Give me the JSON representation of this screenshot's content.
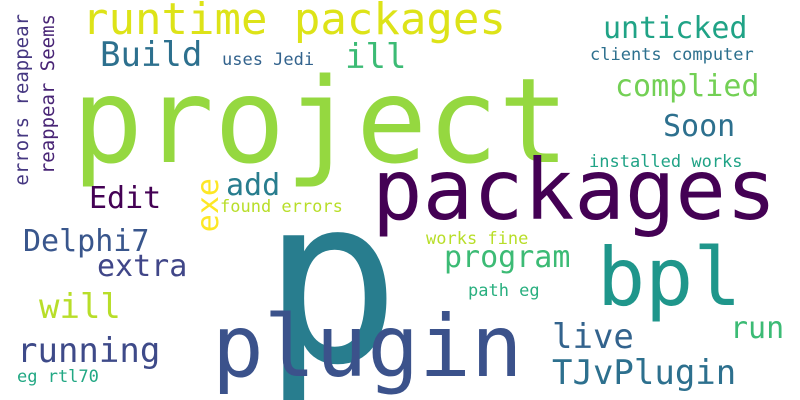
{
  "word_cloud": {
    "words": [
      {
        "text": "project",
        "color": "#95d840"
      },
      {
        "text": "packages",
        "color": "#440154"
      },
      {
        "text": "p",
        "color": "#287d8e"
      },
      {
        "text": "plugin",
        "color": "#3b528b"
      },
      {
        "text": "bpl",
        "color": "#1f968b"
      },
      {
        "text": "runtime packages",
        "color": "#dde318"
      },
      {
        "text": "Build",
        "color": "#2d708e"
      },
      {
        "text": "ill",
        "color": "#3cbb75"
      },
      {
        "text": "unticked",
        "color": "#20a386"
      },
      {
        "text": "complied",
        "color": "#73d055"
      },
      {
        "text": "uses Jedi",
        "color": "#33638d"
      },
      {
        "text": "clients computer",
        "color": "#2d708e"
      },
      {
        "text": "Soon",
        "color": "#2d708e"
      },
      {
        "text": "installed works",
        "color": "#20a386"
      },
      {
        "text": "add",
        "color": "#287d8e"
      },
      {
        "text": "Edit",
        "color": "#440154"
      },
      {
        "text": "exe",
        "color": "#fde725"
      },
      {
        "text": "found errors",
        "color": "#b8de29"
      },
      {
        "text": "Delphi7",
        "color": "#39568c"
      },
      {
        "text": "extra",
        "color": "#404688"
      },
      {
        "text": "works fine",
        "color": "#b8de29"
      },
      {
        "text": "program",
        "color": "#3cbb75"
      },
      {
        "text": "will",
        "color": "#b8de29"
      },
      {
        "text": "path eg",
        "color": "#29af7f"
      },
      {
        "text": "running",
        "color": "#3e4a89"
      },
      {
        "text": "live",
        "color": "#33638d"
      },
      {
        "text": "run",
        "color": "#3cbb75"
      },
      {
        "text": "TJvPlugin",
        "color": "#2d708e"
      },
      {
        "text": "eg rtl70",
        "color": "#22a884"
      },
      {
        "text": "errors reappear",
        "color": "#453781"
      },
      {
        "text": "reappear Seems",
        "color": "#482475"
      }
    ]
  }
}
